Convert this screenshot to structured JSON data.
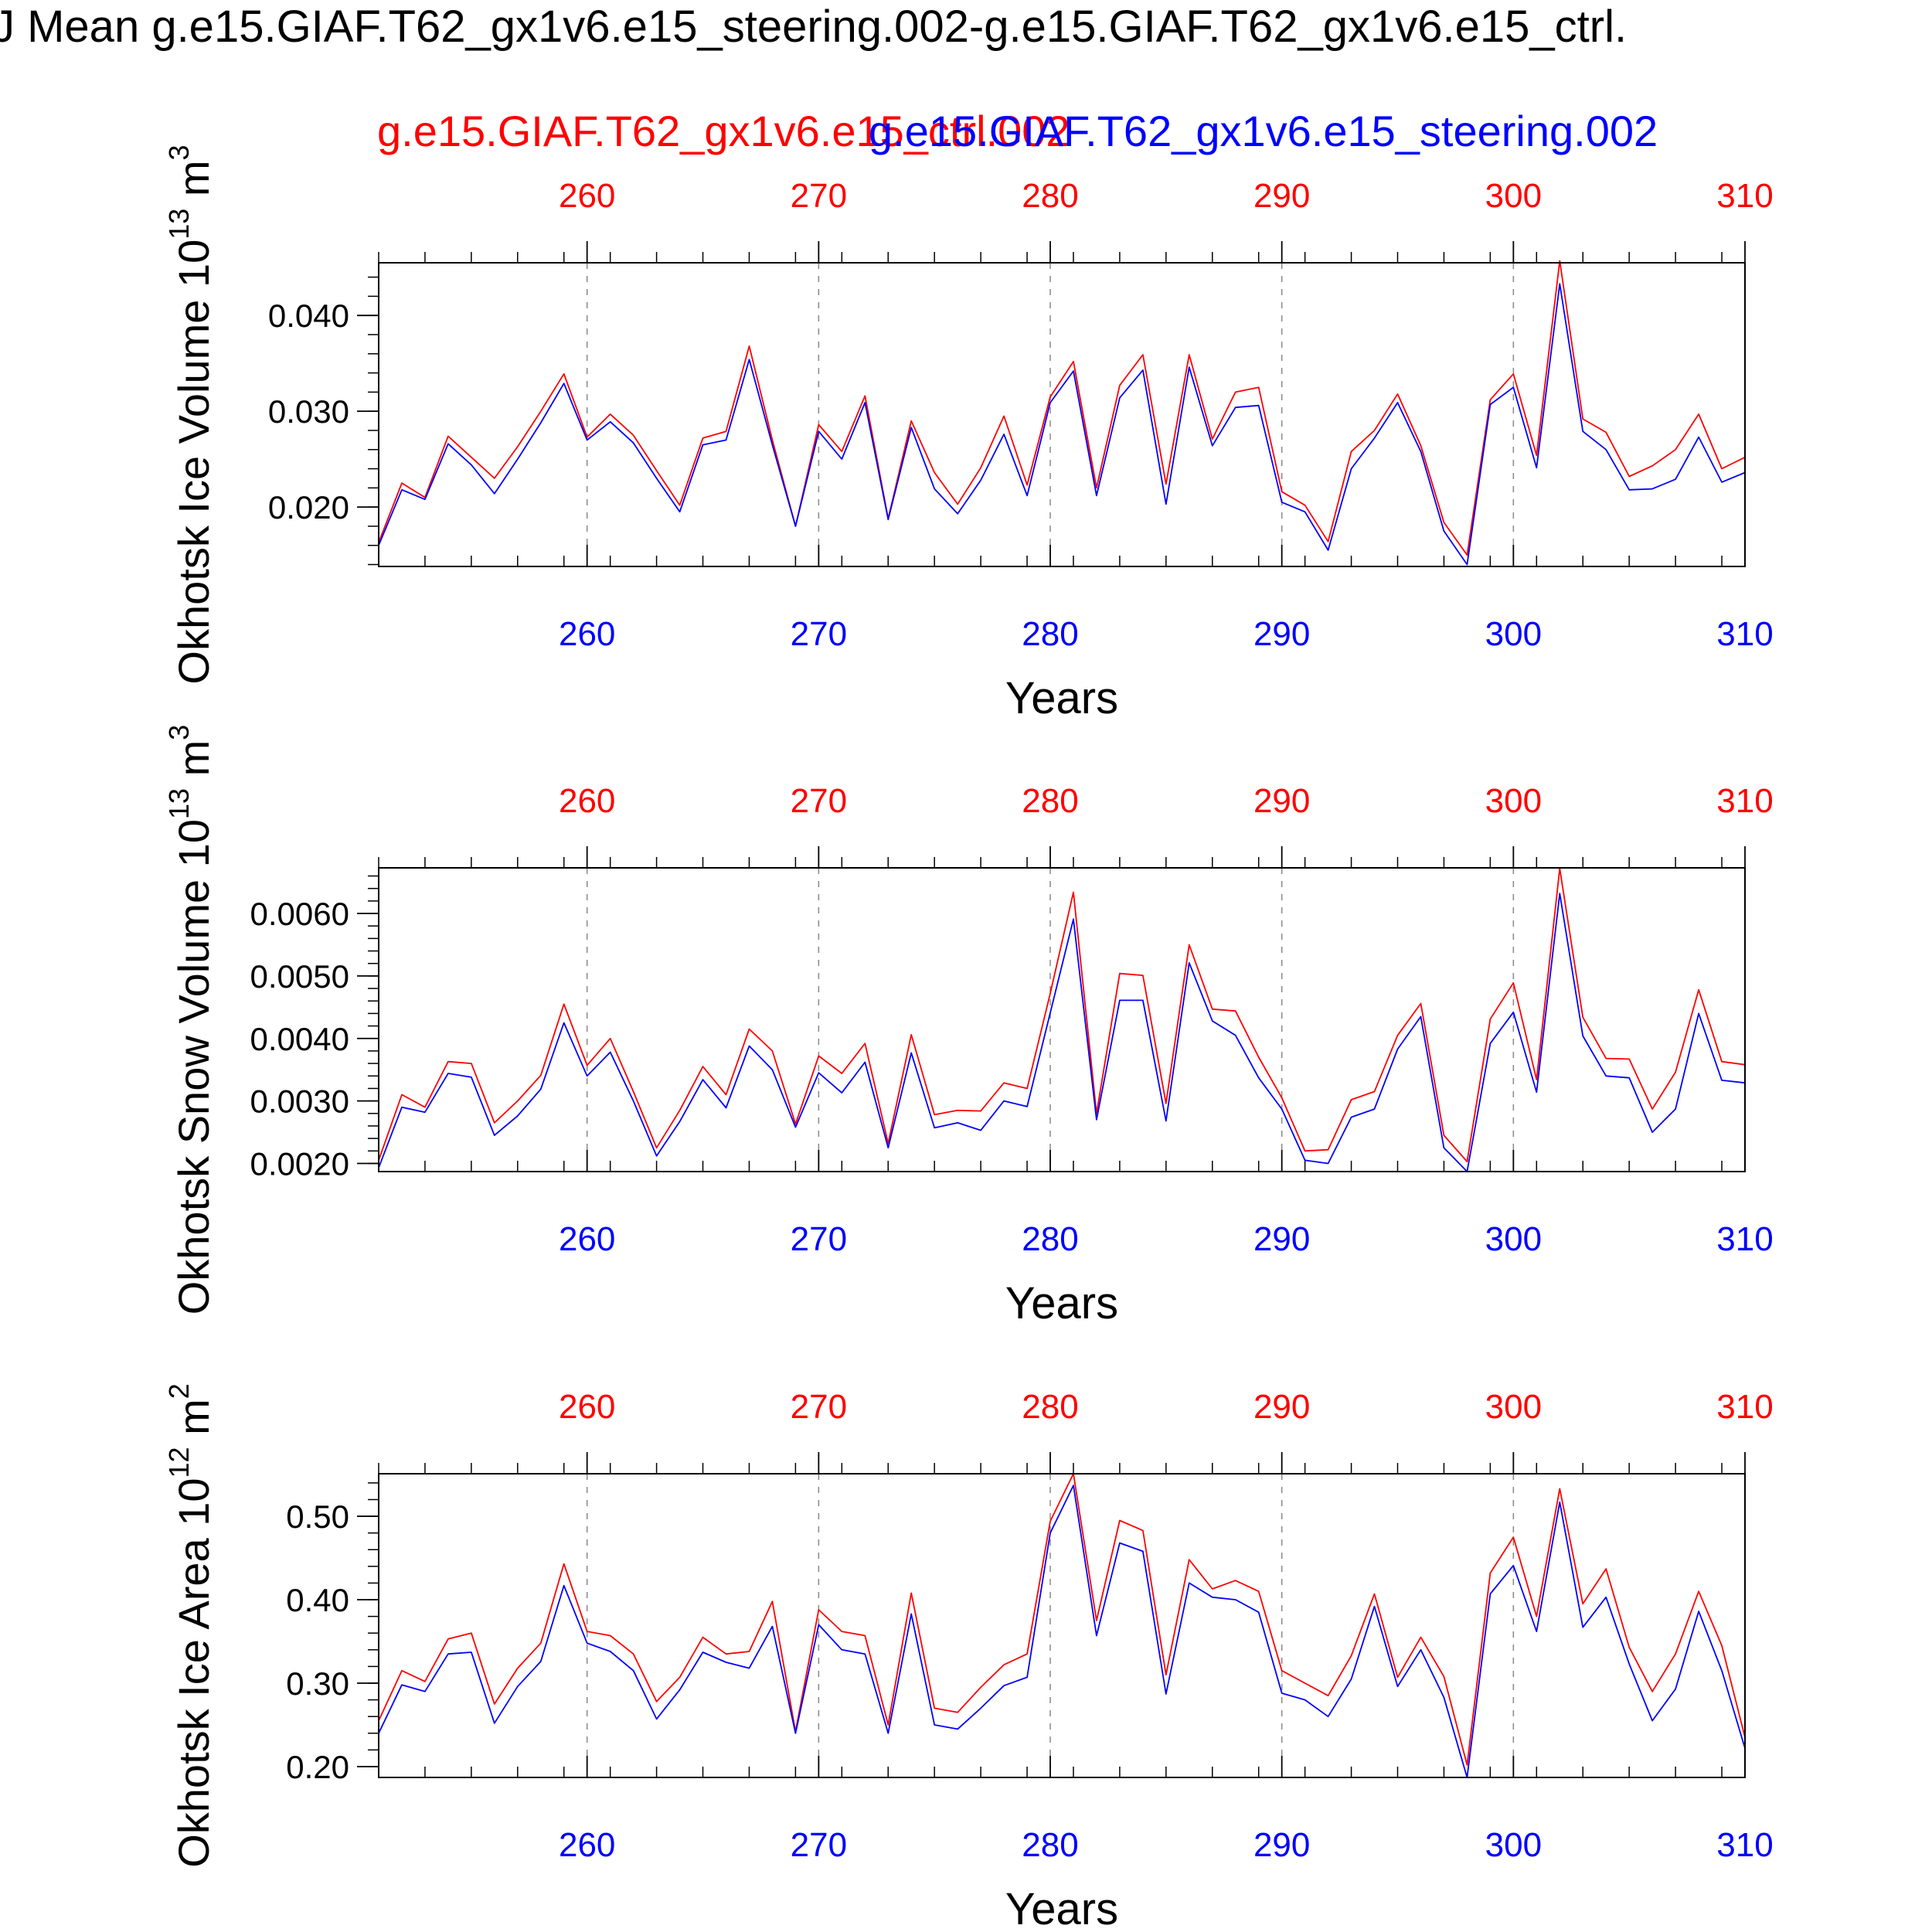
{
  "page": {
    "title": "J Mean g.e15.GIAF.T62_gx1v6.e15_steering.002-g.e15.GIAF.T62_gx1v6.e15_ctrl.",
    "legend": [
      {
        "name": "g.e15.GIAF.T62_gx1v6.e15_ctrl.002",
        "color": "#ff0000"
      },
      {
        "name": "g.e15.GIAF.T62_gx1v6.e15_steering.002",
        "color": "#0000ff"
      }
    ],
    "colors": {
      "ctrl": "#ff0000",
      "steering": "#0000ff",
      "axis": "#000000",
      "grid": "#888888"
    }
  },
  "chart_data": [
    {
      "type": "line",
      "title": "",
      "xlabel": "Years",
      "ylabel": "Okhotsk Ice Volume 10",
      "ylabel_exp": "13",
      "ylabel_unit": "m",
      "ylabel_unit_exp": "3",
      "xlim": [
        251,
        310
      ],
      "ylim": [
        0.0138,
        0.0455
      ],
      "x_ticks": [
        260,
        270,
        280,
        290,
        300,
        310
      ],
      "y_ticks": [
        0.02,
        0.03,
        0.04
      ],
      "y_tick_labels": [
        "0.020",
        "0.030",
        "0.040"
      ],
      "y_minor_step": 0.002,
      "grid": "vertical dashed at major x ticks",
      "x": [
        251,
        252,
        253,
        254,
        255,
        256,
        257,
        258,
        259,
        260,
        261,
        262,
        263,
        264,
        265,
        266,
        267,
        268,
        269,
        270,
        271,
        272,
        273,
        274,
        275,
        276,
        277,
        278,
        279,
        280,
        281,
        282,
        283,
        284,
        285,
        286,
        287,
        288,
        289,
        290,
        291,
        292,
        293,
        294,
        295,
        296,
        297,
        298,
        299,
        300,
        301,
        302,
        303,
        304,
        305,
        306,
        307,
        308,
        309,
        310
      ],
      "series": [
        {
          "name": "g.e15.GIAF.T62_gx1v6.e15_ctrl.002",
          "color": "#ff0000",
          "values": [
            0.0163,
            0.0225,
            0.021,
            0.0274,
            0.0252,
            0.023,
            0.0263,
            0.03,
            0.0339,
            0.0273,
            0.0297,
            0.0275,
            0.0238,
            0.0202,
            0.0272,
            0.0279,
            0.0368,
            0.027,
            0.018,
            0.0286,
            0.0258,
            0.0316,
            0.0188,
            0.029,
            0.0236,
            0.0203,
            0.0241,
            0.0295,
            0.0223,
            0.0315,
            0.0352,
            0.022,
            0.0327,
            0.0359,
            0.0224,
            0.0359,
            0.0271,
            0.032,
            0.0325,
            0.0216,
            0.0202,
            0.0164,
            0.0258,
            0.028,
            0.0318,
            0.0264,
            0.0184,
            0.015,
            0.0312,
            0.0339,
            0.0254,
            0.0457,
            0.0292,
            0.0278,
            0.0232,
            0.0243,
            0.026,
            0.0297,
            0.024,
            0.0252
          ]
        },
        {
          "name": "g.e15.GIAF.T62_gx1v6.e15_steering.002",
          "color": "#0000ff",
          "values": [
            0.016,
            0.0218,
            0.0208,
            0.0266,
            0.0244,
            0.0214,
            0.025,
            0.0288,
            0.0329,
            0.027,
            0.0289,
            0.0267,
            0.023,
            0.0195,
            0.0265,
            0.027,
            0.0354,
            0.0265,
            0.018,
            0.0279,
            0.025,
            0.0309,
            0.0187,
            0.0283,
            0.0219,
            0.0193,
            0.0228,
            0.0276,
            0.0212,
            0.0309,
            0.0342,
            0.0212,
            0.0314,
            0.0343,
            0.0203,
            0.0346,
            0.0264,
            0.0304,
            0.0306,
            0.0205,
            0.0195,
            0.0155,
            0.024,
            0.0272,
            0.0309,
            0.0258,
            0.0175,
            0.014,
            0.0307,
            0.0325,
            0.0241,
            0.0433,
            0.0279,
            0.026,
            0.0218,
            0.0219,
            0.0229,
            0.0273,
            0.0226,
            0.0236
          ]
        }
      ]
    },
    {
      "type": "line",
      "title": "",
      "xlabel": "Years",
      "ylabel": "Okhotsk Snow Volume 10",
      "ylabel_exp": "13",
      "ylabel_unit": "m",
      "ylabel_unit_exp": "3",
      "xlim": [
        251,
        310
      ],
      "ylim": [
        0.00187,
        0.00673
      ],
      "x_ticks": [
        260,
        270,
        280,
        290,
        300,
        310
      ],
      "y_ticks": [
        0.002,
        0.003,
        0.004,
        0.005,
        0.006
      ],
      "y_tick_labels": [
        "0.0020",
        "0.0030",
        "0.0040",
        "0.0050",
        "0.0060"
      ],
      "y_minor_step": 0.0002,
      "grid": "vertical dashed at major x ticks",
      "x": [
        251,
        252,
        253,
        254,
        255,
        256,
        257,
        258,
        259,
        260,
        261,
        262,
        263,
        264,
        265,
        266,
        267,
        268,
        269,
        270,
        271,
        272,
        273,
        274,
        275,
        276,
        277,
        278,
        279,
        280,
        281,
        282,
        283,
        284,
        285,
        286,
        287,
        288,
        289,
        290,
        291,
        292,
        293,
        294,
        295,
        296,
        297,
        298,
        299,
        300,
        301,
        302,
        303,
        304,
        305,
        306,
        307,
        308,
        309,
        310
      ],
      "series": [
        {
          "name": "g.e15.GIAF.T62_gx1v6.e15_ctrl.002",
          "color": "#ff0000",
          "values": [
            0.00205,
            0.0031,
            0.0029,
            0.00363,
            0.0036,
            0.00265,
            0.003,
            0.00341,
            0.00455,
            0.00357,
            0.004,
            0.00315,
            0.00225,
            0.00285,
            0.00355,
            0.0031,
            0.00415,
            0.0038,
            0.00263,
            0.00372,
            0.00344,
            0.00392,
            0.00232,
            0.00406,
            0.00278,
            0.00285,
            0.00284,
            0.00329,
            0.0032,
            0.00472,
            0.00634,
            0.0028,
            0.00504,
            0.00501,
            0.00296,
            0.0055,
            0.00447,
            0.00444,
            0.0037,
            0.00305,
            0.0022,
            0.00222,
            0.00302,
            0.00315,
            0.00405,
            0.00456,
            0.00245,
            0.00203,
            0.00431,
            0.00489,
            0.00334,
            0.00672,
            0.00434,
            0.00368,
            0.00367,
            0.00287,
            0.00346,
            0.00478,
            0.00363,
            0.00358
          ]
        },
        {
          "name": "g.e15.GIAF.T62_gx1v6.e15_steering.002",
          "color": "#0000ff",
          "values": [
            0.00193,
            0.0029,
            0.00282,
            0.00344,
            0.00338,
            0.00245,
            0.00276,
            0.00319,
            0.00425,
            0.0034,
            0.00378,
            0.003,
            0.00212,
            0.00267,
            0.00334,
            0.00289,
            0.00388,
            0.0035,
            0.00258,
            0.00345,
            0.00313,
            0.00362,
            0.00225,
            0.00377,
            0.00257,
            0.00265,
            0.00253,
            0.003,
            0.00291,
            0.00441,
            0.00591,
            0.0027,
            0.00461,
            0.00461,
            0.00268,
            0.00521,
            0.00428,
            0.00405,
            0.00337,
            0.00287,
            0.00205,
            0.002,
            0.00274,
            0.00287,
            0.00383,
            0.00435,
            0.00225,
            0.00187,
            0.00392,
            0.00442,
            0.00314,
            0.00632,
            0.00404,
            0.0034,
            0.00337,
            0.0025,
            0.00287,
            0.0044,
            0.00333,
            0.00329
          ]
        }
      ]
    },
    {
      "type": "line",
      "title": "",
      "xlabel": "Years",
      "ylabel": "Okhotsk Ice Area 10",
      "ylabel_exp": "12",
      "ylabel_unit": "m",
      "ylabel_unit_exp": "2",
      "xlim": [
        251,
        310
      ],
      "ylim": [
        0.187,
        0.551
      ],
      "x_ticks": [
        260,
        270,
        280,
        290,
        300,
        310
      ],
      "y_ticks": [
        0.2,
        0.3,
        0.4,
        0.5
      ],
      "y_tick_labels": [
        "0.20",
        "0.30",
        "0.40",
        "0.50"
      ],
      "y_minor_step": 0.02,
      "grid": "vertical dashed at major x ticks",
      "x": [
        251,
        252,
        253,
        254,
        255,
        256,
        257,
        258,
        259,
        260,
        261,
        262,
        263,
        264,
        265,
        266,
        267,
        268,
        269,
        270,
        271,
        272,
        273,
        274,
        275,
        276,
        277,
        278,
        279,
        280,
        281,
        282,
        283,
        284,
        285,
        286,
        287,
        288,
        289,
        290,
        291,
        292,
        293,
        294,
        295,
        296,
        297,
        298,
        299,
        300,
        301,
        302,
        303,
        304,
        305,
        306,
        307,
        308,
        309,
        310
      ],
      "series": [
        {
          "name": "g.e15.GIAF.T62_gx1v6.e15_ctrl.002",
          "color": "#ff0000",
          "values": [
            0.255,
            0.315,
            0.302,
            0.353,
            0.36,
            0.275,
            0.318,
            0.348,
            0.443,
            0.362,
            0.357,
            0.335,
            0.278,
            0.307,
            0.355,
            0.335,
            0.338,
            0.398,
            0.242,
            0.388,
            0.362,
            0.357,
            0.25,
            0.408,
            0.27,
            0.265,
            0.295,
            0.322,
            0.335,
            0.494,
            0.551,
            0.375,
            0.495,
            0.483,
            0.31,
            0.448,
            0.413,
            0.423,
            0.41,
            0.315,
            0.3,
            0.285,
            0.333,
            0.407,
            0.307,
            0.355,
            0.308,
            0.202,
            0.432,
            0.475,
            0.38,
            0.533,
            0.395,
            0.437,
            0.343,
            0.29,
            0.335,
            0.41,
            0.345,
            0.235
          ]
        },
        {
          "name": "g.e15.GIAF.T62_gx1v6.e15_steering.002",
          "color": "#0000ff",
          "values": [
            0.24,
            0.298,
            0.29,
            0.335,
            0.337,
            0.252,
            0.296,
            0.326,
            0.417,
            0.348,
            0.338,
            0.315,
            0.257,
            0.292,
            0.337,
            0.325,
            0.318,
            0.368,
            0.24,
            0.37,
            0.34,
            0.335,
            0.24,
            0.383,
            0.25,
            0.245,
            0.27,
            0.297,
            0.307,
            0.48,
            0.537,
            0.357,
            0.468,
            0.458,
            0.287,
            0.42,
            0.403,
            0.4,
            0.385,
            0.288,
            0.28,
            0.26,
            0.305,
            0.392,
            0.296,
            0.34,
            0.283,
            0.187,
            0.407,
            0.441,
            0.362,
            0.517,
            0.367,
            0.403,
            0.323,
            0.255,
            0.293,
            0.386,
            0.315,
            0.222
          ]
        }
      ]
    }
  ]
}
